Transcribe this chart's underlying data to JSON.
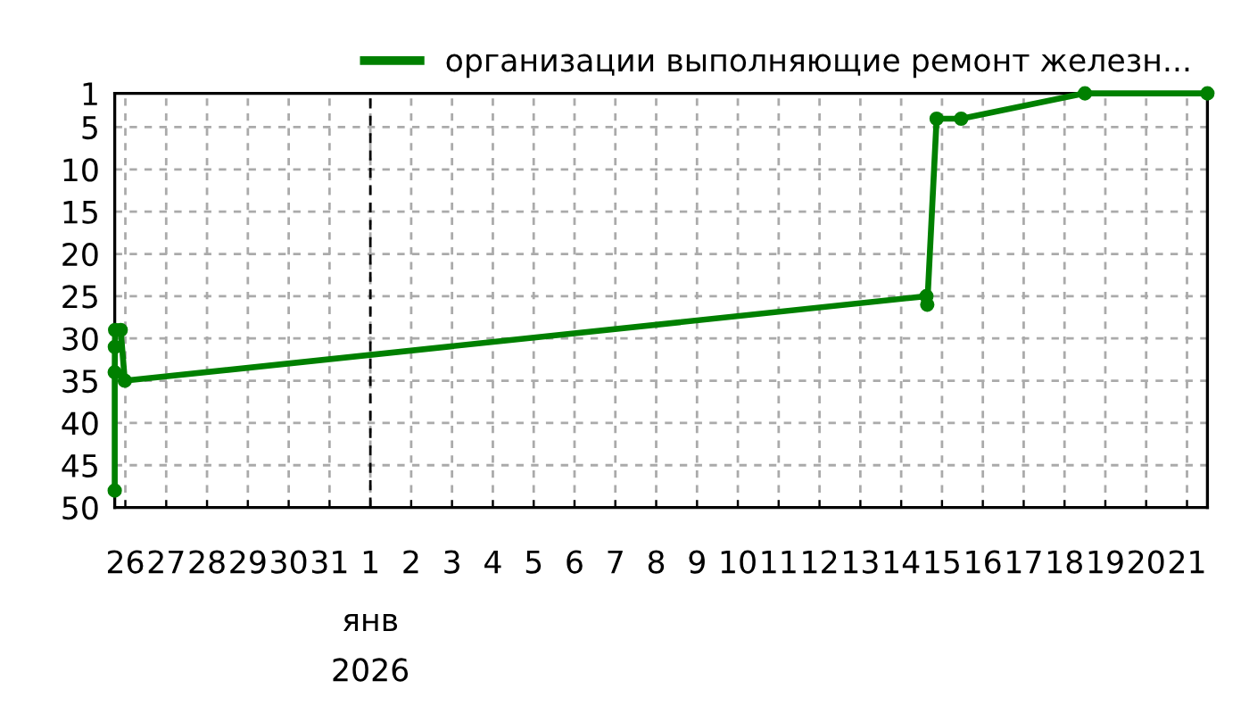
{
  "chart_data": {
    "type": "line",
    "x": [
      "2025-12-25T17:45",
      "2025-12-25T17:45",
      "2025-12-25T17:50",
      "2025-12-25T18:00",
      "2025-12-25T21:15",
      "2025-12-25T23:40",
      "2026-01-14T14:50",
      "2026-01-14T15:20",
      "2026-01-14T20:50",
      "2026-01-15T11:15",
      "2026-01-18T12:00",
      "2026-01-21T12:00"
    ],
    "series": [
      {
        "name": "организации выполняющие ремонт железн...",
        "color": "#008000",
        "values": [
          48,
          34,
          31,
          29,
          29,
          35,
          25,
          26,
          4,
          4,
          1,
          1
        ]
      }
    ],
    "xlim": [
      "2025-12-25T17:45",
      "2026-01-21T12:00"
    ],
    "ylim": [
      50,
      1
    ],
    "xticks": [
      {
        "value": "2025-12-26",
        "label": "26"
      },
      {
        "value": "2025-12-27",
        "label": "27"
      },
      {
        "value": "2025-12-28",
        "label": "28"
      },
      {
        "value": "2025-12-29",
        "label": "29"
      },
      {
        "value": "2025-12-30",
        "label": "30"
      },
      {
        "value": "2025-12-31",
        "label": "31"
      },
      {
        "value": "2026-01-01",
        "label": "1"
      },
      {
        "value": "2026-01-02",
        "label": "2"
      },
      {
        "value": "2026-01-03",
        "label": "3"
      },
      {
        "value": "2026-01-04",
        "label": "4"
      },
      {
        "value": "2026-01-05",
        "label": "5"
      },
      {
        "value": "2026-01-06",
        "label": "6"
      },
      {
        "value": "2026-01-07",
        "label": "7"
      },
      {
        "value": "2026-01-08",
        "label": "8"
      },
      {
        "value": "2026-01-09",
        "label": "9"
      },
      {
        "value": "2026-01-10",
        "label": "10"
      },
      {
        "value": "2026-01-11",
        "label": "11"
      },
      {
        "value": "2026-01-12",
        "label": "12"
      },
      {
        "value": "2026-01-13",
        "label": "13"
      },
      {
        "value": "2026-01-14",
        "label": "14"
      },
      {
        "value": "2026-01-15",
        "label": "15"
      },
      {
        "value": "2026-01-16",
        "label": "16"
      },
      {
        "value": "2026-01-17",
        "label": "17"
      },
      {
        "value": "2026-01-18",
        "label": "18"
      },
      {
        "value": "2026-01-19",
        "label": "19"
      },
      {
        "value": "2026-01-20",
        "label": "20"
      },
      {
        "value": "2026-01-21",
        "label": "21"
      }
    ],
    "yticks": [
      1,
      5,
      10,
      15,
      20,
      25,
      30,
      35,
      40,
      45,
      50
    ],
    "grid": true,
    "legend": "top right",
    "marker": "circle",
    "line_style": "solid",
    "ref_lines": [
      {
        "axis": "x",
        "value": "2026-01-01",
        "label": "янв\n2026",
        "color": "#000000",
        "line_style": "dashed"
      }
    ]
  }
}
